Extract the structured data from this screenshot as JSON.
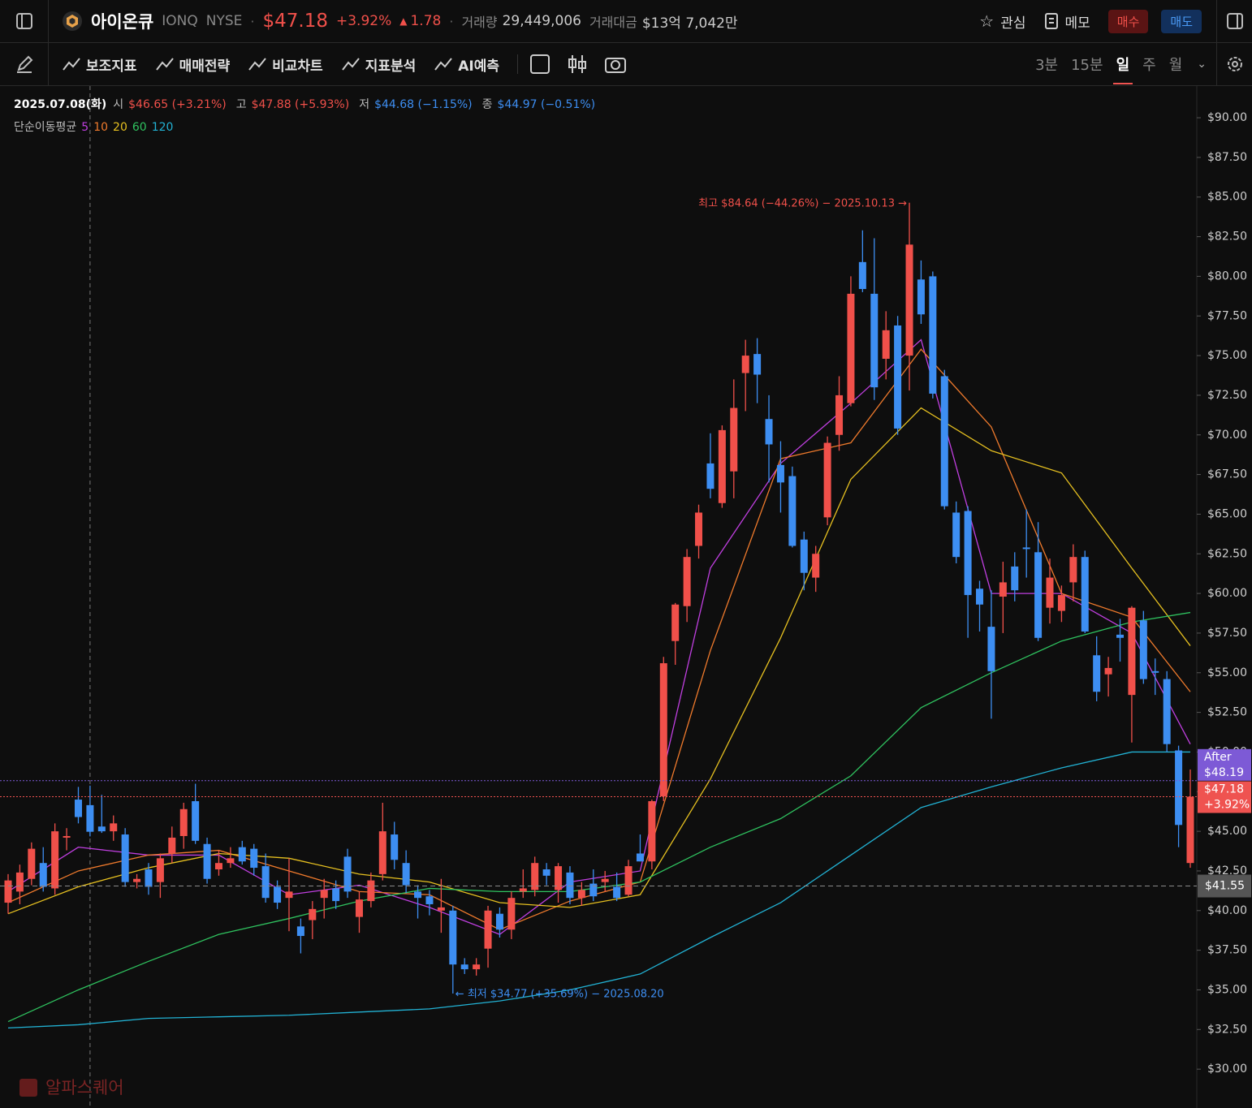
{
  "header": {
    "name": "아이온큐",
    "ticker": "IONQ",
    "exchange": "NYSE",
    "price": "$47.18",
    "change_pct": "+3.92%",
    "change": "1.78",
    "volume_label": "거래량",
    "volume": "29,449,006",
    "amount_label": "거래대금",
    "amount": "$13억 7,042만",
    "watch": "관심",
    "memo": "메모",
    "buy": "매수",
    "sell": "매도"
  },
  "toolbar": {
    "items": [
      "보조지표",
      "매매전략",
      "비교차트",
      "지표분석",
      "AI예측"
    ],
    "timeframes": [
      "3분",
      "15분",
      "일",
      "주",
      "월"
    ]
  },
  "watermark": "알파스퀘어",
  "chart_data": {
    "type": "candlestick",
    "categories": [
      null,
      null,
      null,
      null,
      null,
      null,
      null,
      "2025.07.08(화)",
      null,
      null,
      null,
      null,
      null,
      null,
      null,
      null,
      null,
      null,
      null,
      null,
      null,
      null,
      null,
      null,
      null,
      null,
      null,
      null,
      null,
      null,
      null,
      null,
      null,
      null,
      null,
      null,
      null,
      null,
      null,
      null,
      null,
      null,
      null,
      null,
      null,
      null,
      null,
      null,
      null,
      null,
      null,
      null,
      null,
      null,
      null,
      null,
      null,
      null,
      null,
      null,
      null,
      null,
      null,
      null,
      null,
      null,
      null,
      null,
      null,
      null,
      null,
      null,
      null,
      null,
      null,
      null,
      null,
      null,
      null,
      null,
      null,
      null,
      null,
      null,
      null,
      null,
      null,
      null,
      null,
      null,
      null,
      null,
      null,
      null,
      null,
      null,
      null,
      null,
      null,
      null,
      null,
      null
    ],
    "open": [
      40.5,
      41.2,
      42.0,
      43.0,
      41.4,
      44.6,
      47.0,
      46.65,
      45.3,
      45.0,
      44.8,
      41.8,
      42.6,
      41.8,
      43.6,
      44.7,
      46.9,
      44.2,
      42.6,
      43.0,
      44.0,
      43.9,
      42.8,
      41.5,
      40.8,
      39.0,
      39.4,
      40.8,
      41.4,
      43.4,
      39.6,
      40.6,
      42.3,
      44.8,
      43.0,
      41.2,
      40.9,
      40.0,
      40.0,
      36.6,
      36.3,
      37.6,
      39.8,
      38.8,
      41.2,
      41.3,
      42.6,
      41.3,
      42.4,
      40.8,
      41.7,
      41.8,
      41.5,
      41.0,
      43.6,
      43.1,
      47.2,
      57.0,
      59.2,
      63.0,
      68.2,
      65.7,
      67.7,
      73.9,
      75.1,
      71.0,
      68.1,
      67.4,
      63.4,
      61.0,
      64.8,
      70.0,
      72.0,
      80.9,
      78.9,
      74.8,
      76.9,
      75.0,
      79.8,
      80.0,
      73.7,
      65.1,
      65.2,
      60.3,
      57.9,
      59.8,
      61.7,
      62.9,
      62.6,
      59.1,
      58.9,
      60.7,
      62.3,
      56.1,
      54.9,
      57.4,
      53.6,
      58.3,
      55.1,
      54.6,
      50.1,
      43.0
    ],
    "high": [
      42.3,
      42.9,
      44.3,
      44.0,
      45.5,
      45.2,
      47.8,
      47.88,
      47.3,
      46.0,
      45.2,
      42.3,
      43.0,
      43.6,
      45.3,
      46.8,
      48.0,
      44.6,
      43.8,
      44.0,
      44.4,
      44.2,
      43.6,
      41.9,
      43.3,
      39.5,
      40.6,
      42.0,
      41.9,
      43.9,
      41.2,
      42.4,
      46.8,
      45.6,
      43.8,
      41.6,
      41.3,
      42.0,
      40.3,
      37.0,
      37.0,
      40.3,
      40.2,
      41.2,
      42.6,
      43.4,
      43.0,
      43.0,
      42.8,
      41.8,
      42.6,
      42.5,
      42.4,
      43.2,
      44.8,
      47.0,
      56.0,
      59.4,
      62.8,
      65.6,
      70.1,
      70.6,
      73.5,
      76.0,
      76.1,
      72.5,
      69.6,
      68.0,
      63.9,
      63.0,
      69.9,
      73.7,
      80.0,
      82.9,
      82.4,
      77.8,
      77.5,
      84.64,
      81.0,
      80.3,
      74.1,
      65.8,
      65.5,
      60.8,
      60.2,
      62.0,
      62.6,
      65.3,
      64.5,
      62.2,
      60.5,
      63.1,
      62.7,
      57.3,
      56.0,
      58.4,
      59.2,
      58.9,
      55.9,
      55.1,
      50.4,
      48.9
    ],
    "low": [
      39.8,
      40.4,
      41.6,
      41.2,
      41.0,
      43.8,
      45.5,
      44.68,
      44.9,
      44.4,
      41.5,
      41.4,
      41.0,
      40.8,
      43.0,
      43.9,
      44.2,
      41.7,
      42.2,
      42.7,
      42.9,
      42.2,
      40.5,
      40.1,
      38.7,
      37.3,
      38.2,
      39.5,
      40.1,
      40.8,
      38.6,
      40.2,
      41.9,
      42.6,
      41.1,
      39.5,
      39.7,
      38.6,
      34.77,
      36.0,
      35.9,
      36.4,
      38.3,
      38.2,
      40.8,
      40.9,
      41.6,
      40.5,
      40.4,
      40.3,
      40.6,
      41.2,
      40.6,
      40.9,
      43.1,
      42.6,
      46.9,
      55.5,
      58.2,
      62.2,
      66.0,
      65.4,
      66.0,
      71.5,
      72.0,
      67.0,
      65.1,
      62.9,
      60.2,
      60.1,
      64.3,
      69.0,
      71.8,
      79.0,
      72.2,
      73.5,
      70.0,
      72.8,
      77.0,
      72.3,
      65.3,
      61.9,
      57.2,
      57.6,
      52.1,
      57.5,
      59.5,
      61.0,
      57.0,
      58.1,
      58.2,
      59.5,
      57.5,
      53.2,
      53.5,
      55.7,
      50.6,
      54.3,
      53.6,
      50.0,
      44.0,
      42.7
    ],
    "close": [
      41.9,
      42.4,
      43.9,
      41.5,
      45.0,
      44.7,
      45.9,
      44.97,
      45.0,
      45.5,
      41.8,
      42.0,
      41.5,
      43.3,
      44.6,
      46.4,
      44.4,
      42.0,
      43.0,
      43.3,
      43.1,
      42.7,
      40.8,
      40.5,
      41.2,
      38.4,
      40.1,
      41.3,
      40.6,
      41.2,
      40.7,
      41.9,
      45.0,
      43.2,
      41.6,
      40.8,
      40.4,
      40.2,
      36.6,
      36.3,
      36.6,
      40.0,
      38.8,
      40.8,
      41.4,
      43.0,
      42.2,
      42.8,
      40.8,
      41.3,
      40.9,
      42.0,
      40.8,
      42.8,
      43.1,
      46.9,
      55.6,
      59.3,
      62.3,
      65.1,
      66.6,
      70.3,
      71.7,
      75.0,
      73.8,
      69.4,
      67.0,
      63.0,
      61.3,
      62.5,
      69.5,
      72.5,
      78.9,
      79.2,
      73.0,
      76.6,
      70.4,
      82.0,
      77.6,
      72.6,
      65.5,
      62.3,
      59.9,
      59.3,
      55.1,
      60.7,
      60.2,
      62.8,
      57.2,
      61.0,
      59.9,
      62.3,
      57.6,
      53.8,
      55.3,
      57.2,
      59.1,
      54.6,
      55.0,
      50.5,
      45.4,
      47.18
    ],
    "up_color": "#f0504a",
    "down_color": "#3d8ef2",
    "ylim": [
      27.55,
      92.0
    ],
    "yticks": [
      {
        "value": 30,
        "label": "$30.00"
      },
      {
        "value": 32.5,
        "label": "$32.50"
      },
      {
        "value": 35,
        "label": "$35.00"
      },
      {
        "value": 37.5,
        "label": "$37.50"
      },
      {
        "value": 40,
        "label": "$40.00"
      },
      {
        "value": 42.5,
        "label": "$42.50"
      },
      {
        "value": 45,
        "label": "$45.00"
      },
      {
        "value": 47.5,
        "label": "$47.50"
      },
      {
        "value": 50,
        "label": "$50.00"
      },
      {
        "value": 52.5,
        "label": "$52.50"
      },
      {
        "value": 55,
        "label": "$55.00"
      },
      {
        "value": 57.5,
        "label": "$57.50"
      },
      {
        "value": 60,
        "label": "$60.00"
      },
      {
        "value": 62.5,
        "label": "$62.50"
      },
      {
        "value": 65,
        "label": "$65.00"
      },
      {
        "value": 67.5,
        "label": "$67.50"
      },
      {
        "value": 70,
        "label": "$70.00"
      },
      {
        "value": 72.5,
        "label": "$72.50"
      },
      {
        "value": 75,
        "label": "$75.00"
      },
      {
        "value": 77.5,
        "label": "$77.50"
      },
      {
        "value": 80,
        "label": "$80.00"
      },
      {
        "value": 82.5,
        "label": "$82.50"
      },
      {
        "value": 85,
        "label": "$85.00"
      },
      {
        "value": 87.5,
        "label": "$87.50"
      },
      {
        "value": 90,
        "label": "$90.00"
      }
    ],
    "grid": false,
    "info": {
      "open_label": "시",
      "open": "$46.65 (+3.21%)",
      "high_label": "고",
      "high": "$47.88 (+5.93%)",
      "low_label": "저",
      "low": "$44.68 (−1.15%)",
      "close_label": "종",
      "close": "$44.97 (−0.51%)"
    },
    "annotations": {
      "high": "최고 $84.64 (−44.26%) − 2025.10.13 →",
      "low": "← 최저 $34.77 (+35.69%) − 2025.08.20"
    },
    "moving_averages": {
      "label": "단순이동평균",
      "x": [
        0,
        6,
        12,
        18,
        24,
        30,
        36,
        42,
        48,
        54,
        60,
        66,
        72,
        78,
        84,
        90,
        96,
        101
      ],
      "series": [
        {
          "name": "5",
          "color": "#c03fe0",
          "values": [
            41.2,
            44.0,
            43.5,
            43.5,
            41.0,
            41.6,
            40.2,
            38.5,
            41.8,
            42.5,
            61.6,
            68.2,
            72.0,
            76.0,
            60.0,
            60.0,
            57.5,
            50.5
          ]
        },
        {
          "name": "10",
          "color": "#ef7a2c",
          "values": [
            40.5,
            42.5,
            43.5,
            43.8,
            42.5,
            41.2,
            41.0,
            38.8,
            40.6,
            41.8,
            56.4,
            68.5,
            69.5,
            75.4,
            70.5,
            60.0,
            58.5,
            53.8
          ]
        },
        {
          "name": "20",
          "color": "#e6c020",
          "values": [
            39.8,
            41.5,
            42.7,
            43.6,
            43.3,
            42.3,
            41.8,
            40.5,
            40.2,
            41.0,
            48.3,
            57.2,
            67.2,
            71.7,
            69.0,
            67.6,
            61.6,
            56.7
          ]
        },
        {
          "name": "60",
          "color": "#2fc25f",
          "values": [
            33.0,
            35.0,
            36.8,
            38.5,
            39.5,
            40.6,
            41.4,
            41.2,
            41.2,
            41.8,
            44.0,
            45.8,
            48.5,
            52.8,
            55.0,
            57.0,
            58.2,
            58.8
          ]
        },
        {
          "name": "120",
          "color": "#22b2d4",
          "values": [
            32.6,
            32.8,
            33.2,
            33.3,
            33.4,
            33.6,
            33.8,
            34.3,
            35.0,
            36.0,
            38.3,
            40.5,
            43.5,
            46.5,
            47.8,
            49.0,
            50.0,
            50.0
          ]
        }
      ]
    },
    "price_markers": {
      "after": {
        "label": "After",
        "value": 48.19,
        "value_label": "$48.19",
        "color": "#7d5ad6"
      },
      "last": {
        "value": 47.18,
        "value_label": "$47.18",
        "change": "+3.92%",
        "color": "#ef5350"
      },
      "reference": {
        "value": 41.55,
        "value_label": "$41.55",
        "color": "#555"
      }
    }
  }
}
